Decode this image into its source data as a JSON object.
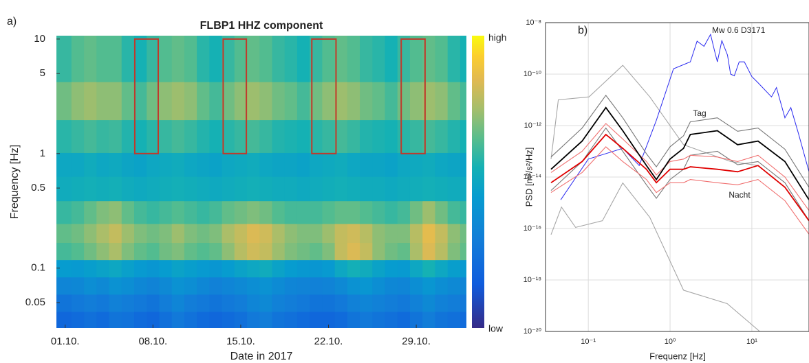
{
  "chart_data": [
    {
      "type": "heatmap",
      "panel_label": "a)",
      "title": "FLBP1 HHZ component",
      "x_label": "Date in 2017",
      "y_label": "Frequency [Hz]",
      "x": [
        1,
        2,
        3,
        4,
        5,
        6,
        7,
        8,
        9,
        10,
        11,
        12,
        13,
        14,
        15,
        16,
        17,
        18,
        19,
        20,
        21,
        22,
        23,
        24,
        25,
        26,
        27,
        28,
        29,
        30,
        31,
        32,
        33
      ],
      "y": [
        0.035,
        0.05,
        0.07,
        0.1,
        0.14,
        0.2,
        0.3,
        0.5,
        0.8,
        1.3,
        3,
        6
      ],
      "values": [
        [
          0.2,
          0.22,
          0.24,
          0.22,
          0.26,
          0.25,
          0.22,
          0.2,
          0.24,
          0.28,
          0.25,
          0.22,
          0.2,
          0.22,
          0.24,
          0.28,
          0.3,
          0.26,
          0.24,
          0.22,
          0.2,
          0.2,
          0.22,
          0.26,
          0.28,
          0.26,
          0.24,
          0.22,
          0.26,
          0.3,
          0.26,
          0.24,
          0.22
        ],
        [
          0.26,
          0.28,
          0.3,
          0.28,
          0.32,
          0.3,
          0.28,
          0.26,
          0.3,
          0.34,
          0.3,
          0.28,
          0.26,
          0.28,
          0.3,
          0.34,
          0.36,
          0.32,
          0.3,
          0.28,
          0.26,
          0.26,
          0.28,
          0.32,
          0.34,
          0.32,
          0.3,
          0.28,
          0.32,
          0.36,
          0.32,
          0.3,
          0.28
        ],
        [
          0.34,
          0.35,
          0.38,
          0.36,
          0.4,
          0.38,
          0.35,
          0.33,
          0.36,
          0.4,
          0.38,
          0.35,
          0.32,
          0.34,
          0.36,
          0.38,
          0.4,
          0.37,
          0.34,
          0.33,
          0.32,
          0.33,
          0.36,
          0.4,
          0.42,
          0.38,
          0.35,
          0.34,
          0.38,
          0.42,
          0.38,
          0.36,
          0.34
        ],
        [
          0.45,
          0.44,
          0.46,
          0.48,
          0.5,
          0.47,
          0.44,
          0.42,
          0.45,
          0.48,
          0.46,
          0.44,
          0.42,
          0.45,
          0.48,
          0.5,
          0.52,
          0.48,
          0.45,
          0.43,
          0.42,
          0.44,
          0.5,
          0.54,
          0.52,
          0.48,
          0.45,
          0.44,
          0.5,
          0.55,
          0.5,
          0.46,
          0.44
        ],
        [
          0.62,
          0.64,
          0.68,
          0.72,
          0.76,
          0.7,
          0.66,
          0.64,
          0.68,
          0.7,
          0.66,
          0.64,
          0.66,
          0.72,
          0.78,
          0.82,
          0.8,
          0.74,
          0.7,
          0.68,
          0.66,
          0.7,
          0.8,
          0.84,
          0.8,
          0.72,
          0.68,
          0.66,
          0.76,
          0.84,
          0.78,
          0.7,
          0.66
        ],
        [
          0.66,
          0.68,
          0.72,
          0.76,
          0.8,
          0.74,
          0.7,
          0.68,
          0.7,
          0.74,
          0.7,
          0.68,
          0.7,
          0.76,
          0.8,
          0.84,
          0.82,
          0.76,
          0.72,
          0.7,
          0.7,
          0.74,
          0.8,
          0.82,
          0.78,
          0.72,
          0.7,
          0.7,
          0.78,
          0.86,
          0.8,
          0.72,
          0.68
        ],
        [
          0.6,
          0.62,
          0.66,
          0.7,
          0.72,
          0.66,
          0.62,
          0.6,
          0.62,
          0.64,
          0.62,
          0.6,
          0.62,
          0.66,
          0.68,
          0.7,
          0.68,
          0.64,
          0.62,
          0.62,
          0.62,
          0.64,
          0.66,
          0.66,
          0.64,
          0.62,
          0.6,
          0.62,
          0.68,
          0.74,
          0.68,
          0.62,
          0.6
        ],
        [
          0.52,
          0.53,
          0.54,
          0.53,
          0.54,
          0.52,
          0.51,
          0.52,
          0.53,
          0.54,
          0.53,
          0.52,
          0.51,
          0.52,
          0.53,
          0.54,
          0.53,
          0.52,
          0.52,
          0.51,
          0.52,
          0.53,
          0.54,
          0.53,
          0.52,
          0.52,
          0.51,
          0.52,
          0.53,
          0.54,
          0.53,
          0.52,
          0.51
        ],
        [
          0.5,
          0.5,
          0.52,
          0.5,
          0.51,
          0.49,
          0.48,
          0.5,
          0.51,
          0.52,
          0.5,
          0.49,
          0.48,
          0.5,
          0.51,
          0.52,
          0.5,
          0.49,
          0.49,
          0.48,
          0.5,
          0.51,
          0.52,
          0.5,
          0.49,
          0.49,
          0.48,
          0.5,
          0.51,
          0.52,
          0.5,
          0.49,
          0.48
        ],
        [
          0.58,
          0.6,
          0.62,
          0.6,
          0.61,
          0.57,
          0.55,
          0.58,
          0.6,
          0.62,
          0.6,
          0.57,
          0.55,
          0.58,
          0.6,
          0.62,
          0.6,
          0.57,
          0.56,
          0.55,
          0.58,
          0.6,
          0.62,
          0.6,
          0.57,
          0.56,
          0.55,
          0.58,
          0.6,
          0.62,
          0.6,
          0.57,
          0.55
        ],
        [
          0.68,
          0.72,
          0.74,
          0.72,
          0.72,
          0.66,
          0.62,
          0.68,
          0.72,
          0.74,
          0.72,
          0.66,
          0.62,
          0.68,
          0.72,
          0.74,
          0.72,
          0.68,
          0.66,
          0.62,
          0.68,
          0.72,
          0.74,
          0.72,
          0.68,
          0.66,
          0.62,
          0.68,
          0.72,
          0.74,
          0.72,
          0.66,
          0.62
        ],
        [
          0.6,
          0.64,
          0.66,
          0.64,
          0.64,
          0.58,
          0.55,
          0.6,
          0.64,
          0.66,
          0.64,
          0.58,
          0.55,
          0.6,
          0.64,
          0.66,
          0.64,
          0.6,
          0.58,
          0.55,
          0.6,
          0.64,
          0.66,
          0.64,
          0.6,
          0.58,
          0.55,
          0.6,
          0.64,
          0.66,
          0.64,
          0.58,
          0.55
        ]
      ],
      "xlim": [
        0.3,
        33
      ],
      "xticks": [
        {
          "value": 1,
          "label": "01.10."
        },
        {
          "value": 8,
          "label": "08.10."
        },
        {
          "value": 15,
          "label": "15.10."
        },
        {
          "value": 22,
          "label": "22.10."
        },
        {
          "value": 29,
          "label": "29.10."
        }
      ],
      "ylim": [
        0.03,
        10.7
      ],
      "yticks": [
        0.05,
        0.1,
        0.5,
        1,
        5,
        10
      ],
      "y_scale": "log",
      "zlim": [
        0,
        1
      ],
      "colormap": "parula",
      "colorbar": {
        "max_label": "high",
        "min_label": "low"
      },
      "regions": [
        {
          "x": [
            6.55,
            8.42
          ],
          "y": [
            1,
            10
          ]
        },
        {
          "x": [
            13.6,
            15.45
          ],
          "y": [
            1,
            10
          ]
        },
        {
          "x": [
            20.67,
            22.6
          ],
          "y": [
            1,
            10
          ]
        },
        {
          "x": [
            27.8,
            29.7
          ],
          "y": [
            1,
            10
          ]
        }
      ],
      "region_color": "#c0392b"
    },
    {
      "type": "line",
      "panel_label": "b)",
      "x_label": "Frequenz [Hz]",
      "y_label": "PSD [m²/s²/Hz]",
      "x_scale": "log",
      "y_scale": "log",
      "grid": true,
      "xlim": [
        0.03,
        50
      ],
      "xticks": [
        {
          "value": 0.1,
          "label": "10⁻¹"
        },
        {
          "value": 1,
          "label": "10⁰"
        },
        {
          "value": 10,
          "label": "10¹"
        }
      ],
      "ylim": [
        1e-20,
        1e-08
      ],
      "yticks": [
        {
          "value": 1e-20,
          "label": "10⁻²⁰"
        },
        {
          "value": 1e-18,
          "label": "10⁻¹⁸"
        },
        {
          "value": 1e-16,
          "label": "10⁻¹⁶"
        },
        {
          "value": 1e-14,
          "label": "10⁻¹⁴"
        },
        {
          "value": 1e-12,
          "label": "10⁻¹²"
        },
        {
          "value": 1e-10,
          "label": "10⁻¹⁰"
        },
        {
          "value": 1e-08,
          "label": "10⁻⁸"
        }
      ],
      "series": [
        {
          "color": "#a6a6a6",
          "x": [
            0.035,
            0.043,
            0.102,
            0.264,
            0.565,
            1.46,
            5.5,
            11.9
          ],
          "values": [
            5e-14,
            1e-11,
            1.3e-11,
            2.2e-10,
            1.3e-11,
            1.8e-13,
            4e-14,
            2.8e-14
          ]
        },
        {
          "color": "#a6a6a6",
          "x": [
            0.035,
            0.047,
            0.07,
            0.149,
            0.264,
            0.565,
            1.46,
            5.0,
            12.5
          ],
          "values": [
            5.8e-17,
            6.8e-16,
            1.1e-16,
            2e-16,
            5.9e-15,
            2.7e-16,
            4e-19,
            1.2e-19,
            1e-20
          ]
        },
        {
          "name": "Mw 0.6 D3171",
          "color": "#2b2bf0",
          "x": [
            0.046,
            0.1,
            0.264,
            0.42,
            0.68,
            1.1,
            1.77,
            2.14,
            2.6,
            3.13,
            3.5,
            3.79,
            4.3,
            5.04,
            5.5,
            6.1,
            7,
            8.1,
            10,
            12,
            17.4,
            20,
            25.4,
            30,
            37.1,
            50
          ],
          "values": [
            1.3e-15,
            5e-14,
            1.3e-13,
            2.8e-14,
            1.6e-12,
            1.6e-10,
            3e-10,
            1.9e-09,
            1.2e-09,
            3.5e-09,
            8e-10,
            3e-10,
            2e-09,
            5.5e-10,
            1e-10,
            8.5e-11,
            3e-10,
            3e-10,
            8e-11,
            4.5e-11,
            1.3e-11,
            3e-11,
            2e-12,
            5e-12,
            5e-13,
            1.6e-14
          ]
        },
        {
          "color": "#777777",
          "x": [
            0.035,
            0.084,
            0.164,
            0.264,
            0.514,
            0.68,
            1.0,
            1.46,
            1.77,
            3.79,
            6.7,
            11.9,
            25.4,
            50
          ],
          "values": [
            6e-14,
            8e-13,
            1.5e-11,
            2e-12,
            8e-14,
            2.5e-14,
            1.5e-13,
            4e-13,
            1.4e-12,
            2e-12,
            6e-13,
            8e-13,
            1.2e-13,
            4e-15
          ]
        },
        {
          "color": "#777777",
          "x": [
            0.035,
            0.084,
            0.164,
            0.264,
            0.514,
            0.68,
            1.0,
            1.46,
            1.77,
            3.79,
            6.7,
            11.9,
            25.4,
            50
          ],
          "values": [
            3e-15,
            4e-14,
            8e-13,
            1e-13,
            5e-15,
            1.5e-15,
            8e-15,
            2e-14,
            7e-14,
            1e-13,
            3e-14,
            4e-14,
            6e-15,
            2e-16
          ]
        },
        {
          "color": "#f07070",
          "x": [
            0.035,
            0.084,
            0.164,
            0.264,
            0.514,
            0.68,
            1.0,
            1.46,
            1.77,
            3.79,
            6.7,
            11.9,
            25.4,
            50
          ],
          "values": [
            1.5e-14,
            1e-13,
            1.2e-12,
            3e-13,
            4e-14,
            1.2e-14,
            4e-14,
            5e-14,
            7e-14,
            6e-14,
            4e-14,
            7e-14,
            1e-14,
            5e-16
          ]
        },
        {
          "color": "#f07070",
          "x": [
            0.035,
            0.084,
            0.164,
            0.264,
            0.514,
            0.68,
            1.0,
            1.46,
            1.77,
            3.79,
            6.7,
            11.9,
            25.4,
            50
          ],
          "values": [
            2.5e-15,
            1.5e-14,
            1.5e-13,
            4e-14,
            8e-15,
            2.5e-15,
            6e-15,
            6e-15,
            8e-15,
            6e-15,
            5e-15,
            8e-15,
            1.2e-15,
            6e-17
          ]
        },
        {
          "name": "Nacht",
          "color": "#e00000",
          "x": [
            0.035,
            0.084,
            0.164,
            0.264,
            0.514,
            0.68,
            1.0,
            1.46,
            1.77,
            3.79,
            6.7,
            11.9,
            25.4,
            50
          ],
          "values": [
            6e-15,
            4e-14,
            4.5e-13,
            1.3e-13,
            2e-14,
            6e-15,
            2e-14,
            2e-14,
            2.5e-14,
            2e-14,
            1.6e-14,
            2.8e-14,
            4e-15,
            2e-16
          ]
        },
        {
          "name": "Tag",
          "color": "#000000",
          "x": [
            0.035,
            0.084,
            0.164,
            0.264,
            0.514,
            0.68,
            1.0,
            1.46,
            1.77,
            3.79,
            6.7,
            11.9,
            25.4,
            50
          ],
          "values": [
            2e-14,
            2.5e-13,
            5e-12,
            6.3e-13,
            2.8e-14,
            8e-15,
            5e-14,
            1.3e-13,
            4.5e-13,
            6.3e-13,
            1.8e-13,
            2.5e-13,
            4e-14,
            1.3e-15
          ]
        }
      ]
    }
  ]
}
